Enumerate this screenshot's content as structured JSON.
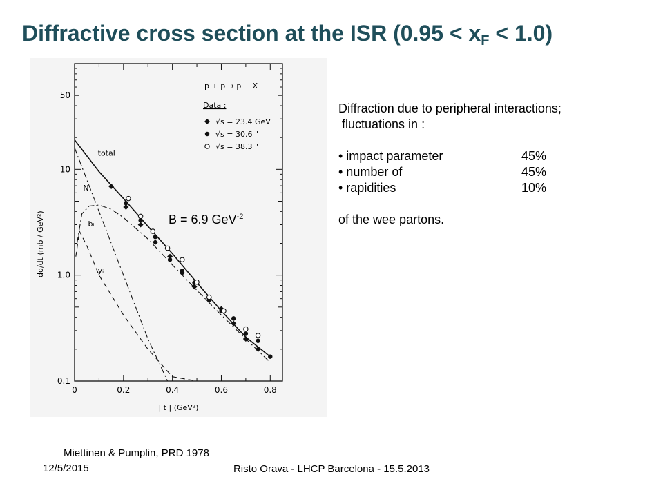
{
  "slide": {
    "title_main": "Diffractive cross section at the ISR (0.95 < x",
    "title_sub": "F",
    "title_end": " < 1.0)",
    "slope_label": "B = 6.9 GeV",
    "slope_exp": "-2",
    "citation": "Miettinen & Pumplin, PRD 1978",
    "footer_date": "12/5/2015",
    "footer_author": "Risto Orava - LHCP Barcelona - 15.5.2013"
  },
  "notes": {
    "line1": "Diffraction due to peripheral interactions;",
    "line2": " fluctuations in :",
    "items": [
      {
        "label": "• impact parameter",
        "value": "45%"
      },
      {
        "label": "• number of",
        "value": "45%"
      },
      {
        "label": "• rapidities",
        "value": "10%"
      }
    ],
    "closing": "of the wee partons."
  },
  "chart_data": {
    "type": "scatter",
    "xlabel": "| t |   (GeV²)",
    "ylabel": "dσ/dt   (mb / GeV²)",
    "xlim": [
      0,
      0.85
    ],
    "ylim": [
      0.1,
      100
    ],
    "yscale": "log",
    "x_ticks": [
      "0",
      "0.2",
      "0.4",
      "0.6",
      "0.8"
    ],
    "y_ticks": [
      "0.1",
      "1.0",
      "10",
      "50"
    ],
    "reaction": "p + p → p + X",
    "legend_title": "Data :",
    "legend": [
      {
        "label": "√s = 23.4 GeV",
        "marker": "diamond"
      },
      {
        "label": "√s = 30.6   \"",
        "marker": "filled-circle"
      },
      {
        "label": "√s = 38.3   \"",
        "marker": "open-circle"
      }
    ],
    "legend_position": "top-right",
    "series": [
      {
        "name": "√s = 23.4 GeV",
        "marker": "diamond",
        "x": [
          0.15,
          0.21,
          0.27,
          0.33,
          0.39,
          0.44,
          0.49,
          0.55,
          0.6,
          0.65,
          0.7,
          0.75
        ],
        "y": [
          6.9,
          4.4,
          3.0,
          2.05,
          1.5,
          1.05,
          0.78,
          0.58,
          0.48,
          0.35,
          0.25,
          0.2
        ]
      },
      {
        "name": "√s = 30.6 \"",
        "marker": "filled-circle",
        "x": [
          0.21,
          0.27,
          0.33,
          0.39,
          0.44,
          0.49,
          0.55,
          0.6,
          0.65,
          0.7,
          0.75,
          0.8
        ],
        "y": [
          4.8,
          3.3,
          2.3,
          1.4,
          1.1,
          0.85,
          0.6,
          0.46,
          0.39,
          0.28,
          0.24,
          0.17
        ]
      },
      {
        "name": "√s = 38.3 \"",
        "marker": "open-circle",
        "x": [
          0.22,
          0.27,
          0.32,
          0.38,
          0.44,
          0.5,
          0.55,
          0.61,
          0.7,
          0.75
        ],
        "y": [
          5.3,
          3.6,
          2.6,
          1.8,
          1.4,
          0.86,
          0.62,
          0.46,
          0.31,
          0.27
        ]
      }
    ],
    "curves": [
      {
        "name": "total",
        "style": "solid",
        "x": [
          0,
          0.1,
          0.2,
          0.3,
          0.4,
          0.5,
          0.6,
          0.7,
          0.8
        ],
        "y": [
          19,
          9.5,
          5.3,
          2.9,
          1.6,
          0.85,
          0.46,
          0.26,
          0.17
        ]
      },
      {
        "name": "N",
        "style": "dash-dot",
        "x": [
          0,
          0.1,
          0.2,
          0.3,
          0.38
        ],
        "y": [
          16,
          4.0,
          1.0,
          0.25,
          0.1
        ]
      },
      {
        "name": "bᵢ",
        "style": "dash-dot",
        "x": [
          0.01,
          0.03,
          0.06,
          0.1,
          0.15,
          0.2,
          0.3,
          0.4,
          0.5,
          0.6,
          0.7,
          0.8
        ],
        "y": [
          2.0,
          3.8,
          4.5,
          4.6,
          4.2,
          3.5,
          2.2,
          1.25,
          0.72,
          0.42,
          0.25,
          0.15
        ]
      },
      {
        "name": "yᵢ",
        "style": "dashed",
        "x": [
          0.005,
          0.02,
          0.05,
          0.1,
          0.15,
          0.2,
          0.3,
          0.4,
          0.5
        ],
        "y": [
          1.5,
          2.6,
          1.9,
          1.0,
          0.65,
          0.42,
          0.2,
          0.11,
          0.1
        ]
      }
    ]
  }
}
